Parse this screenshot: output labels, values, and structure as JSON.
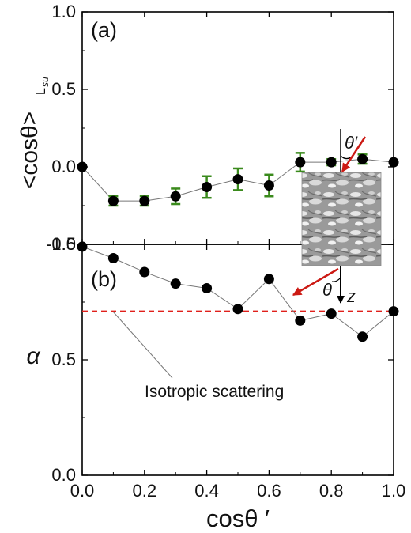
{
  "chart_data": [
    {
      "panel": "(a)",
      "type": "scatter",
      "ylabel": "<cosθ>",
      "ylabel_subscript": "L",
      "ylabel_subsubscript": "su",
      "ylim": [
        -0.5,
        1.0
      ],
      "xlim": [
        0.0,
        1.0
      ],
      "yticks": [
        "-0.5",
        "0.0",
        "0.5",
        "1.0"
      ],
      "series": [
        {
          "x": [
            0.0,
            0.1,
            0.2,
            0.3,
            0.4,
            0.5,
            0.6,
            0.7,
            0.8,
            0.9,
            1.0
          ],
          "y": [
            0.0,
            -0.22,
            -0.22,
            -0.19,
            -0.13,
            -0.08,
            -0.12,
            0.03,
            0.03,
            0.05,
            0.03
          ],
          "error": [
            0,
            0.03,
            0.03,
            0.05,
            0.07,
            0.07,
            0.07,
            0.06,
            0.02,
            0.03,
            0
          ],
          "marker_color": "#000000",
          "error_color": "#3a8a1c"
        }
      ],
      "annotations": {
        "angle_label": "θ′"
      }
    },
    {
      "panel": "(b)",
      "type": "scatter",
      "ylabel": "α",
      "xlabel": "cosθ ′",
      "ylim": [
        0.0,
        1.0
      ],
      "xlim": [
        0.0,
        1.0
      ],
      "yticks": [
        "0.0",
        "0.5",
        "1.0"
      ],
      "xticks": [
        "0.0",
        "0.2",
        "0.4",
        "0.6",
        "0.8",
        "1.0"
      ],
      "series": [
        {
          "x": [
            0.0,
            0.1,
            0.2,
            0.3,
            0.4,
            0.5,
            0.6,
            0.7,
            0.8,
            0.9,
            1.0
          ],
          "y": [
            0.99,
            0.94,
            0.88,
            0.83,
            0.81,
            0.72,
            0.85,
            0.67,
            0.7,
            0.6,
            0.71
          ],
          "marker_color": "#000000"
        }
      ],
      "reference_line": {
        "y": 0.71,
        "color": "#e0201b",
        "style": "dashed"
      },
      "annotations": {
        "isotropic_label": "Isotropic scattering",
        "angle_label": "θ",
        "axis_label": "z"
      }
    }
  ],
  "colors": {
    "arrow": "#cc1a14",
    "error_bars": "#3a8a1c",
    "reference": "#e0201b"
  }
}
